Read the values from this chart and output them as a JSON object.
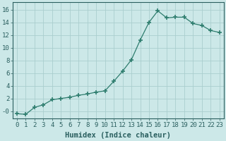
{
  "x": [
    0,
    1,
    2,
    3,
    4,
    5,
    6,
    7,
    8,
    9,
    10,
    11,
    12,
    13,
    14,
    15,
    16,
    17,
    18,
    19,
    20,
    21,
    22,
    23
  ],
  "y": [
    -0.4,
    -0.5,
    0.6,
    1.0,
    1.8,
    2.0,
    2.2,
    2.5,
    2.7,
    3.0,
    3.2,
    4.7,
    6.3,
    8.1,
    11.2,
    14.0,
    15.8,
    14.7,
    14.8,
    14.8,
    13.8,
    13.5,
    12.7,
    12.4
  ],
  "line_color": "#2e7d6e",
  "marker_color": "#2e7d6e",
  "bg_color": "#cce8e8",
  "grid_color": "#aacece",
  "xlabel": "Humidex (Indice chaleur)",
  "yticks": [
    0,
    2,
    4,
    6,
    8,
    10,
    12,
    14,
    16
  ],
  "ytick_labels": [
    "-0",
    "2",
    "4",
    "6",
    "8",
    "10",
    "12",
    "14",
    "16"
  ],
  "xlim": [
    -0.5,
    23.5
  ],
  "ylim": [
    -1.2,
    17.2
  ],
  "xticks": [
    0,
    1,
    2,
    3,
    4,
    5,
    6,
    7,
    8,
    9,
    10,
    11,
    12,
    13,
    14,
    15,
    16,
    17,
    18,
    19,
    20,
    21,
    22,
    23
  ],
  "xtick_labels": [
    "0",
    "1",
    "2",
    "3",
    "4",
    "5",
    "6",
    "7",
    "8",
    "9",
    "10",
    "11",
    "12",
    "13",
    "14",
    "15",
    "16",
    "17",
    "18",
    "19",
    "20",
    "21",
    "22",
    "23"
  ],
  "font_color": "#2a5f5f",
  "tick_fontsize": 6.5,
  "xlabel_fontsize": 7.5
}
